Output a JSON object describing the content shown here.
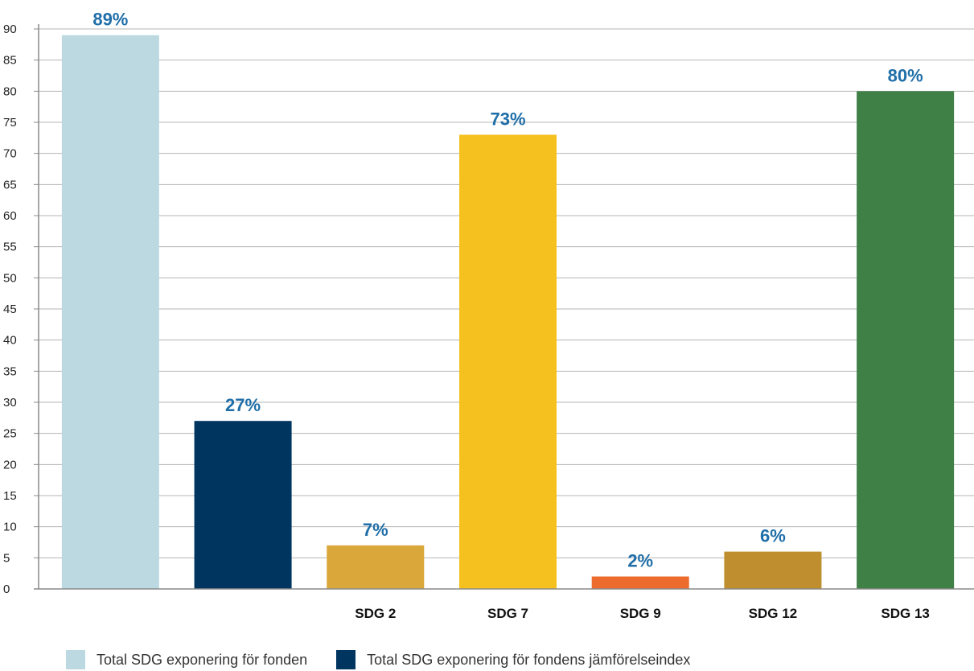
{
  "chart_data": {
    "type": "bar",
    "categories": [
      "",
      "",
      "SDG 2",
      "SDG 7",
      "SDG 9",
      "SDG 12",
      "SDG 13"
    ],
    "values": [
      89,
      27,
      7,
      73,
      2,
      6,
      80
    ],
    "value_labels": [
      "89%",
      "27%",
      "7%",
      "73%",
      "2%",
      "6%",
      "80%"
    ],
    "colors": [
      "#bcd9e2",
      "#003560",
      "#d9a73a",
      "#f5c11e",
      "#ec6b2d",
      "#bf8e2e",
      "#3e8045"
    ],
    "label_color": "#1f6ea8",
    "ylim": [
      0,
      90
    ],
    "yticks": [
      0,
      5,
      10,
      15,
      20,
      25,
      30,
      35,
      40,
      45,
      50,
      55,
      60,
      65,
      70,
      75,
      80,
      85,
      90
    ],
    "grid": true,
    "legend_position": "bottom-left",
    "legend": [
      {
        "label": "Total SDG exponering för fonden",
        "color": "#bcd9e2"
      },
      {
        "label": "Total SDG exponering för fondens jämförelseindex",
        "color": "#003560"
      }
    ]
  }
}
